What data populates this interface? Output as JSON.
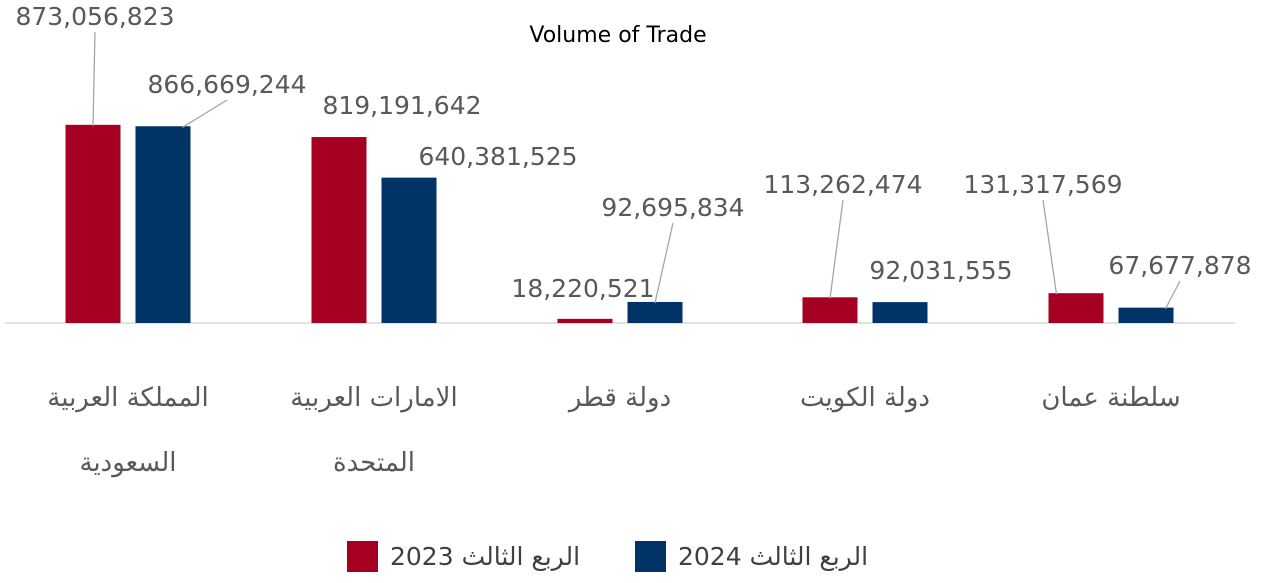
{
  "chart_data": {
    "type": "bar",
    "title": "Volume of Trade",
    "categories": [
      "المملكة العربية السعودية",
      "الامارات العربية المتحدة",
      "دولة قطر",
      "دولة الكويت",
      "سلطنة عمان"
    ],
    "series": [
      {
        "name": "الربع الثالث 2023",
        "color": "#a50021",
        "values": [
          873056823,
          819191642,
          18220521,
          113262474,
          131317569
        ],
        "value_labels": [
          "873,056,823",
          "819,191,642",
          "18,220,521",
          "113,262,474",
          "131,317,569"
        ]
      },
      {
        "name": "الربع الثالث 2024",
        "color": "#003366",
        "values": [
          866669244,
          640381525,
          92695834,
          92031555,
          67677878
        ],
        "value_labels": [
          "866,669,244",
          "640,381,525",
          "92,695,834",
          "92,031,555",
          "67,677,878"
        ]
      }
    ],
    "ylim": [
      0,
      1000000000
    ]
  }
}
